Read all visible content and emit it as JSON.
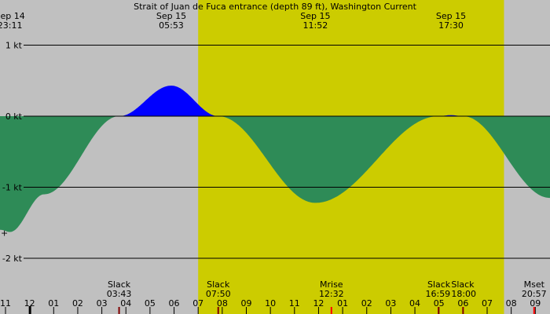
{
  "chart_data": {
    "type": "area",
    "title": "Strait of Juan de Fuca entrance (depth 89 ft), Washington Current",
    "xlabel": "",
    "ylabel": "",
    "x_unit": "hours from 2025-09-15 00:00",
    "xlim": [
      -1.2,
      21.6
    ],
    "ylim": [
      -2.2,
      1.6
    ],
    "y_ticks": [
      {
        "value": 1,
        "label": "1 kt"
      },
      {
        "value": 0,
        "label": "0 kt"
      },
      {
        "value": -1,
        "label": "-1 kt"
      },
      {
        "value": -2,
        "label": "-2 kt"
      }
    ],
    "colors": {
      "background": "#c0c0c0",
      "daylight": "#cccc00",
      "flood": "#0000ff",
      "ebb": "#2e8b57",
      "grid": "#000000",
      "moon_tick": "#ff0000"
    },
    "daylight": {
      "start": 7.0,
      "end": 19.7
    },
    "current_points": [
      {
        "x": -1.2,
        "y": -1.6
      },
      {
        "x": -0.8166667,
        "y": -1.63
      },
      {
        "x": 0.6,
        "y": -1.1
      },
      {
        "x": 3.7166667,
        "y": 0.0
      },
      {
        "x": 5.8833333,
        "y": 0.43
      },
      {
        "x": 7.8333333,
        "y": 0.0
      },
      {
        "x": 11.8666667,
        "y": -1.22
      },
      {
        "x": 16.9833333,
        "y": 0.0
      },
      {
        "x": 17.5,
        "y": 0.015
      },
      {
        "x": 18.0,
        "y": 0.0
      },
      {
        "x": 21.6,
        "y": -1.15
      }
    ],
    "top_labels": [
      {
        "x": -0.8166667,
        "date": "Sep 14",
        "time": "23:11"
      },
      {
        "x": 5.8833333,
        "date": "Sep 15",
        "time": "05:53"
      },
      {
        "x": 11.8666667,
        "date": "Sep 15",
        "time": "11:52"
      },
      {
        "x": 17.5,
        "date": "Sep 15",
        "time": "17:30"
      }
    ],
    "events": [
      {
        "x": 3.7166667,
        "label": "Slack",
        "time": "03:43",
        "anchor": "middle"
      },
      {
        "x": 7.8333333,
        "label": "Slack",
        "time": "07:50",
        "anchor": "middle"
      },
      {
        "x": 12.5333333,
        "label": "Mrise",
        "time": "12:32",
        "anchor": "middle"
      },
      {
        "x": 16.9833333,
        "label": "Slack",
        "time": "16:59",
        "anchor": "end"
      },
      {
        "x": 18.0,
        "label": "Slack",
        "time": "18:00",
        "anchor": "start"
      },
      {
        "x": 20.95,
        "label": "Mset",
        "time": "20:57",
        "anchor": "middle"
      }
    ],
    "hour_ticks": [
      {
        "x": -1,
        "label": "11"
      },
      {
        "x": 0,
        "label": "12"
      },
      {
        "x": 1,
        "label": "01"
      },
      {
        "x": 2,
        "label": "02"
      },
      {
        "x": 3,
        "label": "03"
      },
      {
        "x": 4,
        "label": "04"
      },
      {
        "x": 5,
        "label": "05"
      },
      {
        "x": 6,
        "label": "06"
      },
      {
        "x": 7,
        "label": "07"
      },
      {
        "x": 8,
        "label": "08"
      },
      {
        "x": 9,
        "label": "09"
      },
      {
        "x": 10,
        "label": "10"
      },
      {
        "x": 11,
        "label": "11"
      },
      {
        "x": 12,
        "label": "12"
      },
      {
        "x": 13,
        "label": "01"
      },
      {
        "x": 14,
        "label": "02"
      },
      {
        "x": 15,
        "label": "03"
      },
      {
        "x": 16,
        "label": "04"
      },
      {
        "x": 17,
        "label": "05"
      },
      {
        "x": 18,
        "label": "06"
      },
      {
        "x": 19,
        "label": "07"
      },
      {
        "x": 20,
        "label": "08"
      },
      {
        "x": 21,
        "label": "09"
      }
    ],
    "marker": "+",
    "midnight_x": 0,
    "moon_event_x": [
      12.5333333,
      20.95
    ],
    "grid": true,
    "legend": "none"
  }
}
